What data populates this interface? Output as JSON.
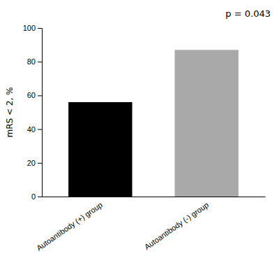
{
  "chart_data": {
    "type": "bar",
    "categories": [
      "Autoantibody (+) group",
      "Autoantibody (-) group"
    ],
    "values": [
      56.0,
      87.0
    ],
    "colors": [
      "#000000",
      "#a9a9a9"
    ],
    "ylabel": "mRS < 2, %",
    "ylim": [
      0,
      100
    ],
    "yticks": [
      0,
      20,
      40,
      60,
      80,
      100
    ],
    "annotation": "p = 0.043"
  }
}
